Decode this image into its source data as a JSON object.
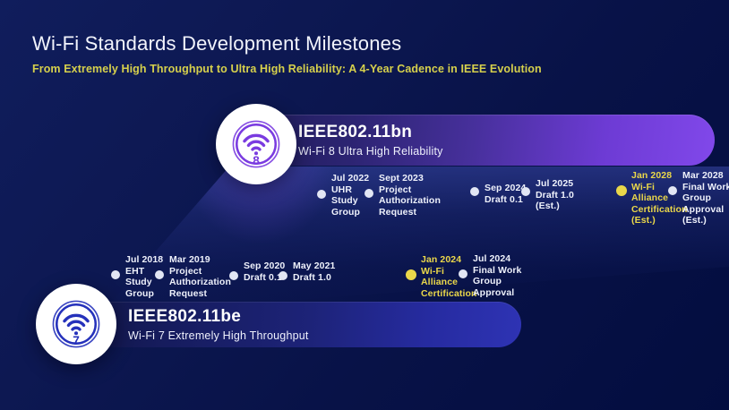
{
  "header": {
    "title": "Wi-Fi Standards Development Milestones",
    "subtitle": "From Extremely High Throughput to Ultra High Reliability: A 4-Year Cadence in IEEE Evolution"
  },
  "colors": {
    "bgTop": "#101d5c",
    "bgBottom": "#030d3f",
    "accentYellow": "#d6d04c",
    "msYellow": "#ead74a",
    "dotWhite": "#e2e6f4",
    "textWhite": "#f2f4fc",
    "icon8": "#7a3be0",
    "icon7": "#2531bb",
    "pill8End": "#8148ea",
    "pill7End": "#2e33b4"
  },
  "timelines": [
    {
      "id": "wifi8",
      "standard": "IEEE802.11bn",
      "generation_label": "Wi-Fi 8  Ultra High Reliability",
      "badge_number": "8",
      "badge_icon": "wifi-signal-icon",
      "milestones": [
        {
          "lines": [
            "Jul 2022",
            "UHR",
            "Study",
            "Group"
          ],
          "highlight": false
        },
        {
          "lines": [
            "Sept 2023",
            "Project",
            "Authorization",
            "Request"
          ],
          "highlight": false
        },
        {
          "lines": [
            "Sep 2024",
            "Draft 0.1"
          ],
          "highlight": false
        },
        {
          "lines": [
            "Jul 2025",
            "Draft 1.0",
            "(Est.)"
          ],
          "highlight": false
        },
        {
          "lines": [
            "Jan 2028",
            "Wi-Fi",
            "Alliance",
            "Certification",
            "(Est.)"
          ],
          "highlight": true
        },
        {
          "lines": [
            "Mar 2028",
            "Final Work",
            "Group",
            "Approval",
            "(Est.)"
          ],
          "highlight": false
        }
      ]
    },
    {
      "id": "wifi7",
      "standard": "IEEE802.11be",
      "generation_label": "Wi-Fi 7 Extremely High Throughput",
      "badge_number": "7",
      "badge_icon": "wifi-signal-icon",
      "milestones": [
        {
          "lines": [
            "Jul 2018",
            "EHT",
            "Study",
            "Group"
          ],
          "highlight": false
        },
        {
          "lines": [
            "Mar 2019",
            "Project",
            "Authorization",
            "Request"
          ],
          "highlight": false
        },
        {
          "lines": [
            "Sep 2020",
            "Draft 0.1"
          ],
          "highlight": false
        },
        {
          "lines": [
            "May 2021",
            "Draft 1.0"
          ],
          "highlight": false
        },
        {
          "lines": [
            "Jan 2024",
            "Wi-Fi",
            "Alliance",
            "Certification"
          ],
          "highlight": true
        },
        {
          "lines": [
            "Jul 2024",
            "Final Work",
            "Group",
            "Approval"
          ],
          "highlight": false
        }
      ]
    }
  ]
}
